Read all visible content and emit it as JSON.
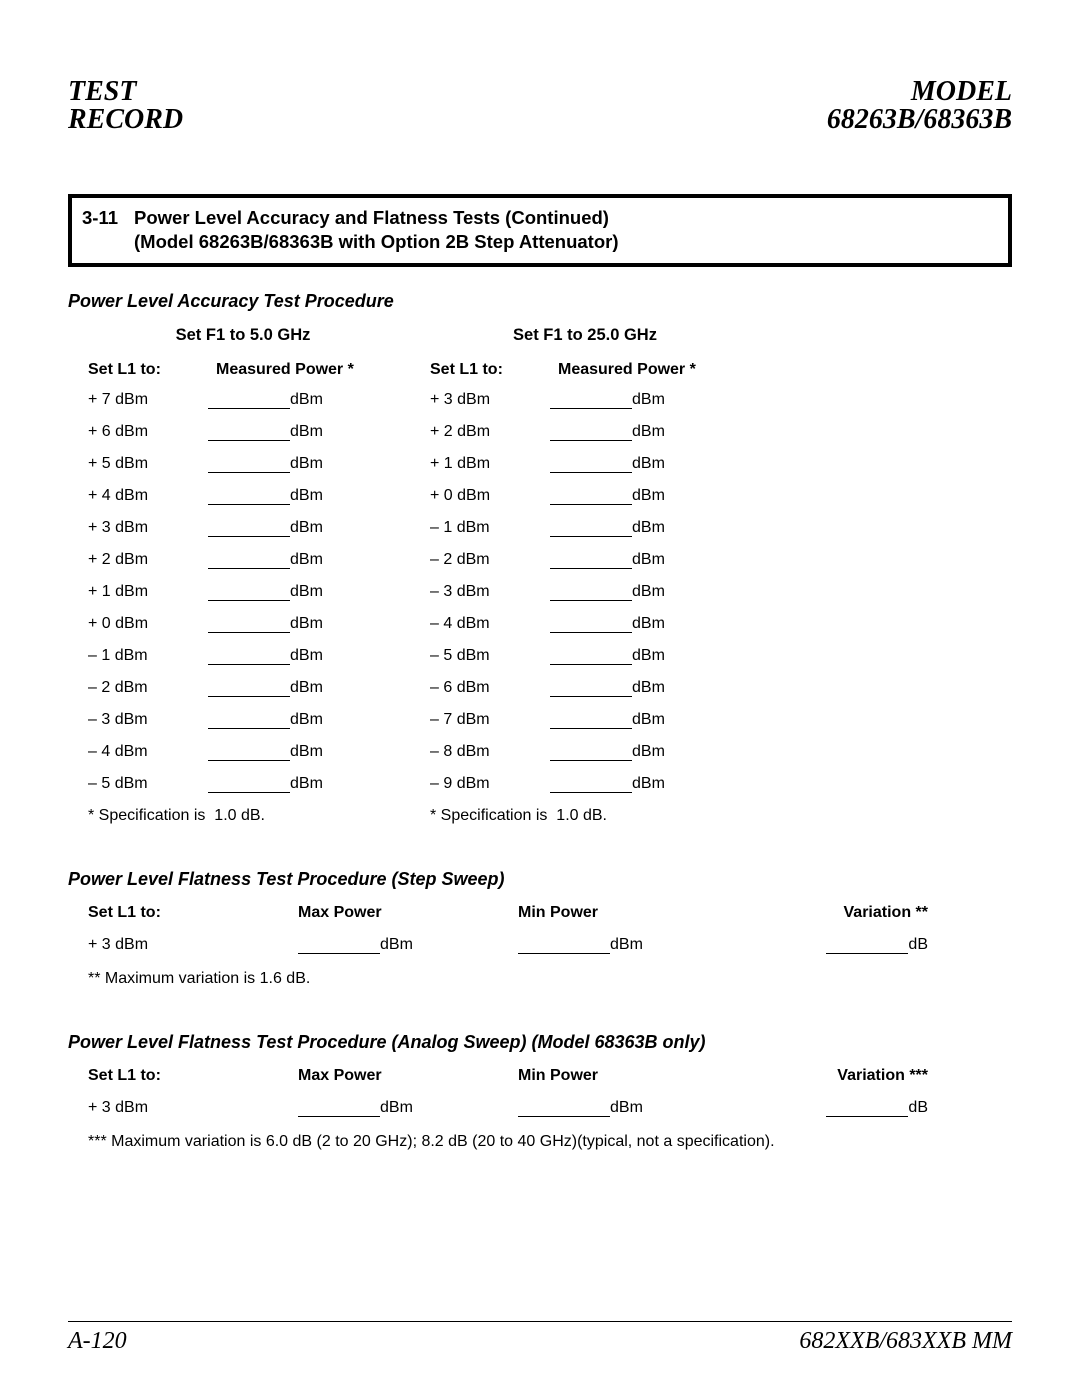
{
  "header": {
    "left_line1": "TEST",
    "left_line2": "RECORD",
    "right_line1": "MODEL",
    "right_line2": "68263B/68363B"
  },
  "section_box": {
    "number": "3-11",
    "line1": "Power Level Accuracy and Flatness Tests (Continued)",
    "line2": "(Model 68263B/68363B with Option 2B Step Attenuator)"
  },
  "accuracy": {
    "subhead": "Power Level Accuracy Test Procedure",
    "col_left": {
      "title": "Set F1 to 5.0 GHz",
      "hdr_left": "Set L1 to:",
      "hdr_right": "Measured Power *",
      "unit": "dBm",
      "spec_note_prefix": "* Specification is ",
      "spec_note_value": "1.0 dB.",
      "rows": [
        "+ 7 dBm",
        "+ 6 dBm",
        "+ 5 dBm",
        "+ 4 dBm",
        "+ 3 dBm",
        "+ 2 dBm",
        "+ 1 dBm",
        "+ 0 dBm",
        "– 1 dBm",
        "– 2 dBm",
        "– 3 dBm",
        "– 4 dBm",
        "– 5 dBm"
      ]
    },
    "col_right": {
      "title": "Set F1 to 25.0 GHz",
      "hdr_left": "Set L1 to:",
      "hdr_right": "Measured Power *",
      "unit": "dBm",
      "spec_note_prefix": "* Specification is ",
      "spec_note_value": "1.0 dB.",
      "rows": [
        "+ 3 dBm",
        "+ 2 dBm",
        "+ 1 dBm",
        "+ 0 dBm",
        "– 1 dBm",
        "– 2 dBm",
        "– 3 dBm",
        "– 4 dBm",
        "– 5 dBm",
        "– 6 dBm",
        "– 7 dBm",
        "– 8 dBm",
        "– 9 dBm"
      ]
    }
  },
  "flat_step": {
    "subhead": "Power Level Flatness Test Procedure (Step Sweep)",
    "hdr": {
      "c1": "Set L1 to:",
      "c2": "Max Power",
      "c3": "Min Power",
      "c4": "Variation **"
    },
    "row": {
      "c1": "+ 3 dBm",
      "c2_unit": "dBm",
      "c3_unit": "dBm",
      "c4_unit": "dB"
    },
    "note": "** Maximum variation is 1.6 dB."
  },
  "flat_analog": {
    "subhead": "Power Level Flatness Test Procedure (Analog Sweep) (Model 68363B only)",
    "hdr": {
      "c1": "Set L1 to:",
      "c2": "Max Power",
      "c3": "Min Power",
      "c4": "Variation ***"
    },
    "row": {
      "c1": "+ 3 dBm",
      "c2_unit": "dBm",
      "c3_unit": "dBm",
      "c4_unit": "dB"
    },
    "note": "*** Maximum variation is 6.0 dB (2 to 20 GHz); 8.2 dB (20 to 40 GHz)(typical, not a specification)."
  },
  "footer": {
    "left": "A-120",
    "right": "682XXB/683XXB MM"
  }
}
